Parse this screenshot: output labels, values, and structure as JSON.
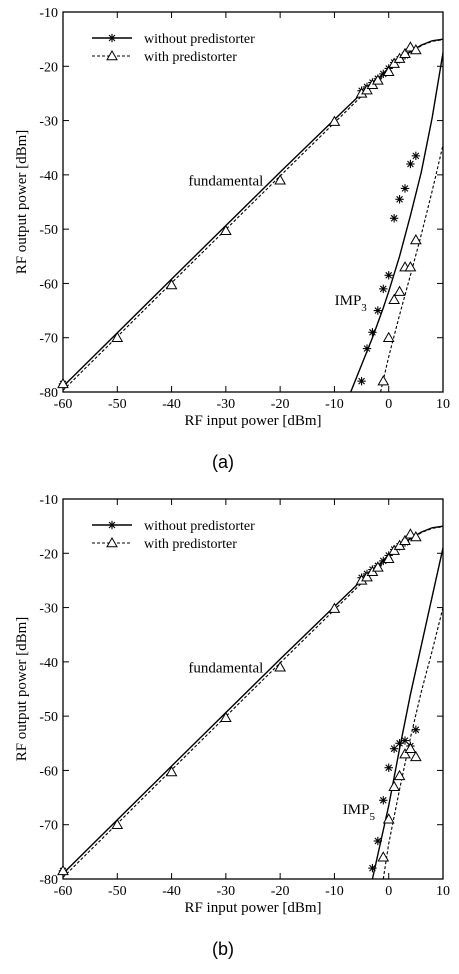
{
  "chart_data": [
    {
      "type": "line",
      "caption": "(a)",
      "xlabel": "RF input power [dBm]",
      "ylabel": "RF output power [dBm]",
      "xlim": [
        -60,
        10
      ],
      "ylim": [
        -80,
        -10
      ],
      "xticks": [
        -60,
        -50,
        -40,
        -30,
        -20,
        -10,
        0,
        10
      ],
      "yticks": [
        -80,
        -70,
        -60,
        -50,
        -40,
        -30,
        -20,
        -10
      ],
      "grid": false,
      "legend_position": "top-left",
      "legend": [
        {
          "label": "without  predistorter",
          "style": "solid",
          "marker": "asterisk"
        },
        {
          "label": "with  predistorter",
          "style": "dashed",
          "marker": "triangle"
        }
      ],
      "annotations": [
        {
          "text": "fundamental",
          "x": -30,
          "y": -42
        },
        {
          "text": "IMP",
          "sub": "3",
          "x": -7,
          "y": -64
        }
      ],
      "series": [
        {
          "group": "fundamental",
          "style": "solid",
          "x": [
            -60,
            -40,
            -20,
            -10,
            -5,
            -2,
            0,
            2,
            4,
            6,
            8,
            10
          ],
          "y": [
            -79,
            -59.2,
            -39.5,
            -29.8,
            -25,
            -22.3,
            -20.3,
            -18.6,
            -17.3,
            -16.1,
            -15.3,
            -15
          ]
        },
        {
          "group": "fundamental",
          "style": "dashed",
          "x": [
            -60,
            -40,
            -20,
            -10,
            -5,
            -2,
            0,
            2,
            4,
            6,
            8,
            10
          ],
          "y": [
            -79.7,
            -59.9,
            -40.2,
            -30.4,
            -25.5,
            -22.7,
            -20.6,
            -18.9,
            -17.5,
            -16.2,
            -15.4,
            -15.1
          ]
        },
        {
          "group": "fundamental",
          "style": "markers",
          "marker": "asterisk",
          "x": [
            -60,
            -5,
            -4,
            -3,
            -2,
            -1,
            0,
            1,
            2,
            3
          ],
          "y": [
            -78.5,
            -24.5,
            -23.8,
            -23,
            -22.3,
            -21.4,
            -20.4,
            -19.3,
            -18.7,
            -18
          ]
        },
        {
          "group": "fundamental",
          "style": "markers",
          "marker": "triangle",
          "x": [
            -60,
            -50,
            -40,
            -30,
            -20,
            -10,
            -5,
            -4,
            -3,
            -2,
            0,
            1,
            2,
            3,
            4,
            5
          ],
          "y": [
            -78.5,
            -70,
            -60.3,
            -50.3,
            -41,
            -30.2,
            -25,
            -24.4,
            -23.4,
            -22.6,
            -21,
            -19.5,
            -18.6,
            -17.7,
            -16.5,
            -17
          ]
        },
        {
          "group": "IMP3",
          "style": "solid",
          "x": [
            -7,
            -5,
            -3,
            -1,
            0,
            2,
            4,
            6,
            8,
            10
          ],
          "y": [
            -80,
            -75,
            -70,
            -64.5,
            -61.5,
            -55,
            -47.5,
            -39.5,
            -29.5,
            -17.5
          ]
        },
        {
          "group": "IMP3",
          "style": "dashed",
          "x": [
            -1.5,
            0,
            2,
            4,
            6,
            8,
            10
          ],
          "y": [
            -80,
            -73.5,
            -65.8,
            -58.5,
            -51,
            -43,
            -34.5
          ]
        },
        {
          "group": "IMP3",
          "style": "markers",
          "marker": "asterisk",
          "x": [
            -5,
            -4,
            -3,
            -2,
            -1,
            0,
            1,
            2,
            3,
            4,
            5
          ],
          "y": [
            -78,
            -72,
            -69,
            -65,
            -61,
            -58.5,
            -48,
            -44.5,
            -42.5,
            -38,
            -36.5
          ]
        },
        {
          "group": "IMP3",
          "style": "markers",
          "marker": "triangle",
          "x": [
            -1,
            0,
            1,
            2,
            3,
            4,
            5
          ],
          "y": [
            -78,
            -70,
            -63,
            -61.5,
            -57,
            -57,
            -52
          ]
        }
      ]
    },
    {
      "type": "line",
      "caption": "(b)",
      "xlabel": "RF input power [dBm]",
      "ylabel": "RF output power [dBm]",
      "xlim": [
        -60,
        10
      ],
      "ylim": [
        -80,
        -10
      ],
      "xticks": [
        -60,
        -50,
        -40,
        -30,
        -20,
        -10,
        0,
        10
      ],
      "yticks": [
        -80,
        -70,
        -60,
        -50,
        -40,
        -30,
        -20,
        -10
      ],
      "grid": false,
      "legend_position": "top-left",
      "legend": [
        {
          "label": "without  predistorter",
          "style": "solid",
          "marker": "asterisk"
        },
        {
          "label": "with  predistorter",
          "style": "dashed",
          "marker": "triangle"
        }
      ],
      "annotations": [
        {
          "text": "fundamental",
          "x": -30,
          "y": -42
        },
        {
          "text": "IMP",
          "sub": "5",
          "x": -5.5,
          "y": -68
        }
      ],
      "series": [
        {
          "group": "fundamental",
          "style": "solid",
          "x": [
            -60,
            -40,
            -20,
            -10,
            -5,
            -2,
            0,
            2,
            4,
            6,
            8,
            10
          ],
          "y": [
            -79,
            -59.2,
            -39.5,
            -29.8,
            -25,
            -22.3,
            -20.3,
            -18.6,
            -17.3,
            -16.1,
            -15.3,
            -15
          ]
        },
        {
          "group": "fundamental",
          "style": "dashed",
          "x": [
            -60,
            -40,
            -20,
            -10,
            -5,
            -2,
            0,
            2,
            4,
            6,
            8,
            10
          ],
          "y": [
            -79.7,
            -59.9,
            -40.2,
            -30.4,
            -25.5,
            -22.7,
            -20.6,
            -18.9,
            -17.5,
            -16.2,
            -15.4,
            -15.1
          ]
        },
        {
          "group": "fundamental",
          "style": "markers",
          "marker": "asterisk",
          "x": [
            -60,
            -5,
            -4,
            -3,
            -2,
            -1,
            0,
            1,
            2,
            3
          ],
          "y": [
            -78.5,
            -24.5,
            -23.8,
            -23,
            -22.3,
            -21.4,
            -20.4,
            -19.3,
            -18.7,
            -18
          ]
        },
        {
          "group": "fundamental",
          "style": "markers",
          "marker": "triangle",
          "x": [
            -60,
            -50,
            -40,
            -30,
            -20,
            -10,
            -5,
            -4,
            -3,
            -2,
            0,
            1,
            2,
            3,
            4,
            5
          ],
          "y": [
            -78.5,
            -70,
            -60.3,
            -50.3,
            -41,
            -30.2,
            -25,
            -24.4,
            -23.4,
            -22.6,
            -21,
            -19.5,
            -18.6,
            -17.7,
            -16.5,
            -17
          ]
        },
        {
          "group": "IMP5",
          "style": "solid",
          "x": [
            -3,
            -1,
            0,
            2,
            4,
            6,
            8,
            10
          ],
          "y": [
            -80,
            -71,
            -66.5,
            -56,
            -46,
            -37,
            -28,
            -19
          ]
        },
        {
          "group": "IMP5",
          "style": "dashed",
          "x": [
            -1,
            0,
            2,
            4,
            6,
            8,
            10
          ],
          "y": [
            -80,
            -73.5,
            -63.5,
            -54,
            -45.5,
            -38,
            -30
          ]
        },
        {
          "group": "IMP5",
          "style": "markers",
          "marker": "asterisk",
          "x": [
            -3,
            -2,
            -1,
            0,
            1,
            2,
            3,
            4,
            5
          ],
          "y": [
            -78,
            -73,
            -65.5,
            -59.5,
            -56,
            -55,
            -54.5,
            -55.5,
            -52.5
          ]
        },
        {
          "group": "IMP5",
          "style": "markers",
          "marker": "triangle",
          "x": [
            -1,
            0,
            1,
            2,
            3,
            4,
            5
          ],
          "y": [
            -76,
            -69,
            -63,
            -61,
            -57,
            -56,
            -57.5
          ]
        }
      ]
    }
  ]
}
